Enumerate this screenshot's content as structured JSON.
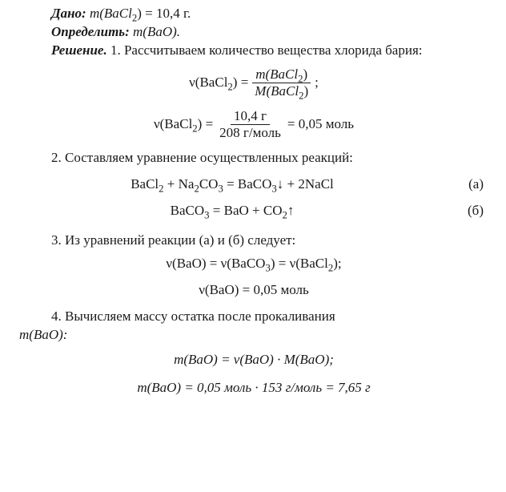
{
  "given": {
    "label": "Дано:",
    "expr_lhs": "m(BaCl",
    "expr_sub": "2",
    "expr_rhs": ") = 10,4 г."
  },
  "find": {
    "label": "Определить:",
    "expr": "m(BaO)."
  },
  "solution": {
    "label": "Решение.",
    "step1_text": "1. Рассчитываем количество вещества хлорида бария:",
    "eq1": {
      "lhs_nu": "ν(BaCl",
      "lhs_sub": "2",
      "lhs_end": ") =",
      "num_m": "m(BaCl",
      "num_sub": "2",
      "num_end": ")",
      "den_M": "M(BaCl",
      "den_sub": "2",
      "den_end": ")",
      "tail": ";"
    },
    "eq2": {
      "lhs_nu": "ν(BaCl",
      "lhs_sub": "2",
      "lhs_end": ") =",
      "num": "10,4 г",
      "den": "208 г/моль",
      "rhs": "= 0,05 моль"
    },
    "step2_text": "2. Составляем уравнение осуществленных реакций:",
    "rxn_a": {
      "text_pre": "BaCl",
      "s1": "2",
      "t2": " + Na",
      "s2": "2",
      "t3": "CO",
      "s3": "3",
      "t4": " = BaCO",
      "s4": "3",
      "arrow": "↓ + 2NaCl",
      "label": "(а)"
    },
    "rxn_b": {
      "t1": "BaCO",
      "s1": "3",
      "t2": " = BaO + CO",
      "s2": "2",
      "arrow": "↑",
      "label": "(б)"
    },
    "step3_text": "3. Из уравнений реакции (а) и (б) следует:",
    "eq3a": {
      "p1": "ν(BaO) = ν(BaCO",
      "s1": "3",
      "p2": ") = ν(BaCl",
      "s2": "2",
      "p3": ");"
    },
    "eq3b": "ν(BaO) = 0,05 моль",
    "step4_text_a": "4. Вычисляем массу остатка после прокаливания",
    "step4_text_b": "m(BaO):",
    "eq4a": {
      "p1": "m(BaO) = ν(BaO) · ",
      "p2": "M(BaO);"
    },
    "eq4b": "m(BaO) = 0,05 моль · 153 г/моль = 7,65 г"
  },
  "style": {
    "font_pt": 17,
    "text_color": "#1a1a1a",
    "background": "#ffffff",
    "fraction_rule_color": "#1a1a1a"
  }
}
